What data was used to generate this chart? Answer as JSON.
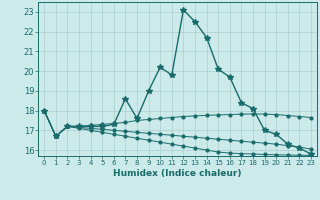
{
  "xlabel": "Humidex (Indice chaleur)",
  "background_color": "#cceaea",
  "grid_color": "#aacece",
  "line_color": "#1a6b6b",
  "xlim": [
    -0.5,
    23.5
  ],
  "ylim": [
    15.7,
    23.5
  ],
  "yticks": [
    16,
    17,
    18,
    19,
    20,
    21,
    22,
    23
  ],
  "xticks": [
    0,
    1,
    2,
    3,
    4,
    5,
    6,
    7,
    8,
    9,
    10,
    11,
    12,
    13,
    14,
    15,
    16,
    17,
    18,
    19,
    20,
    21,
    22,
    23
  ],
  "series": [
    {
      "x": [
        0,
        1,
        2,
        3,
        4,
        5,
        6,
        7,
        8,
        9,
        10,
        11,
        12,
        13,
        14,
        15,
        16,
        17,
        18,
        19,
        20,
        21,
        22,
        23
      ],
      "y": [
        18.0,
        16.7,
        17.2,
        17.2,
        17.2,
        17.2,
        17.3,
        18.6,
        17.6,
        19.0,
        20.2,
        19.8,
        23.1,
        22.5,
        21.7,
        20.1,
        19.7,
        18.4,
        18.1,
        17.0,
        16.8,
        16.3,
        16.1,
        15.8
      ],
      "marker": "*",
      "markersize": 4,
      "linewidth": 1.0
    },
    {
      "x": [
        0,
        1,
        2,
        3,
        4,
        5,
        6,
        7,
        8,
        9,
        10,
        11,
        12,
        13,
        14,
        15,
        16,
        17,
        18,
        19,
        20,
        21,
        22,
        23
      ],
      "y": [
        18.0,
        16.7,
        17.2,
        17.2,
        17.25,
        17.3,
        17.35,
        17.4,
        17.5,
        17.55,
        17.6,
        17.65,
        17.7,
        17.73,
        17.76,
        17.78,
        17.8,
        17.82,
        17.83,
        17.82,
        17.8,
        17.75,
        17.7,
        17.65
      ],
      "marker": "o",
      "markersize": 2,
      "linewidth": 0.7
    },
    {
      "x": [
        0,
        1,
        2,
        3,
        4,
        5,
        6,
        7,
        8,
        9,
        10,
        11,
        12,
        13,
        14,
        15,
        16,
        17,
        18,
        19,
        20,
        21,
        22,
        23
      ],
      "y": [
        18.0,
        16.7,
        17.2,
        17.15,
        17.1,
        17.05,
        17.0,
        16.95,
        16.9,
        16.85,
        16.8,
        16.75,
        16.7,
        16.65,
        16.6,
        16.55,
        16.5,
        16.45,
        16.4,
        16.35,
        16.3,
        16.22,
        16.15,
        16.05
      ],
      "marker": "o",
      "markersize": 2,
      "linewidth": 0.7
    },
    {
      "x": [
        0,
        1,
        2,
        3,
        4,
        5,
        6,
        7,
        8,
        9,
        10,
        11,
        12,
        13,
        14,
        15,
        16,
        17,
        18,
        19,
        20,
        21,
        22,
        23
      ],
      "y": [
        18.0,
        16.7,
        17.2,
        17.1,
        17.0,
        16.9,
        16.8,
        16.7,
        16.6,
        16.5,
        16.4,
        16.3,
        16.2,
        16.1,
        16.0,
        15.9,
        15.85,
        15.82,
        15.8,
        15.78,
        15.76,
        15.75,
        15.74,
        15.73
      ],
      "marker": "o",
      "markersize": 2,
      "linewidth": 0.7
    }
  ]
}
